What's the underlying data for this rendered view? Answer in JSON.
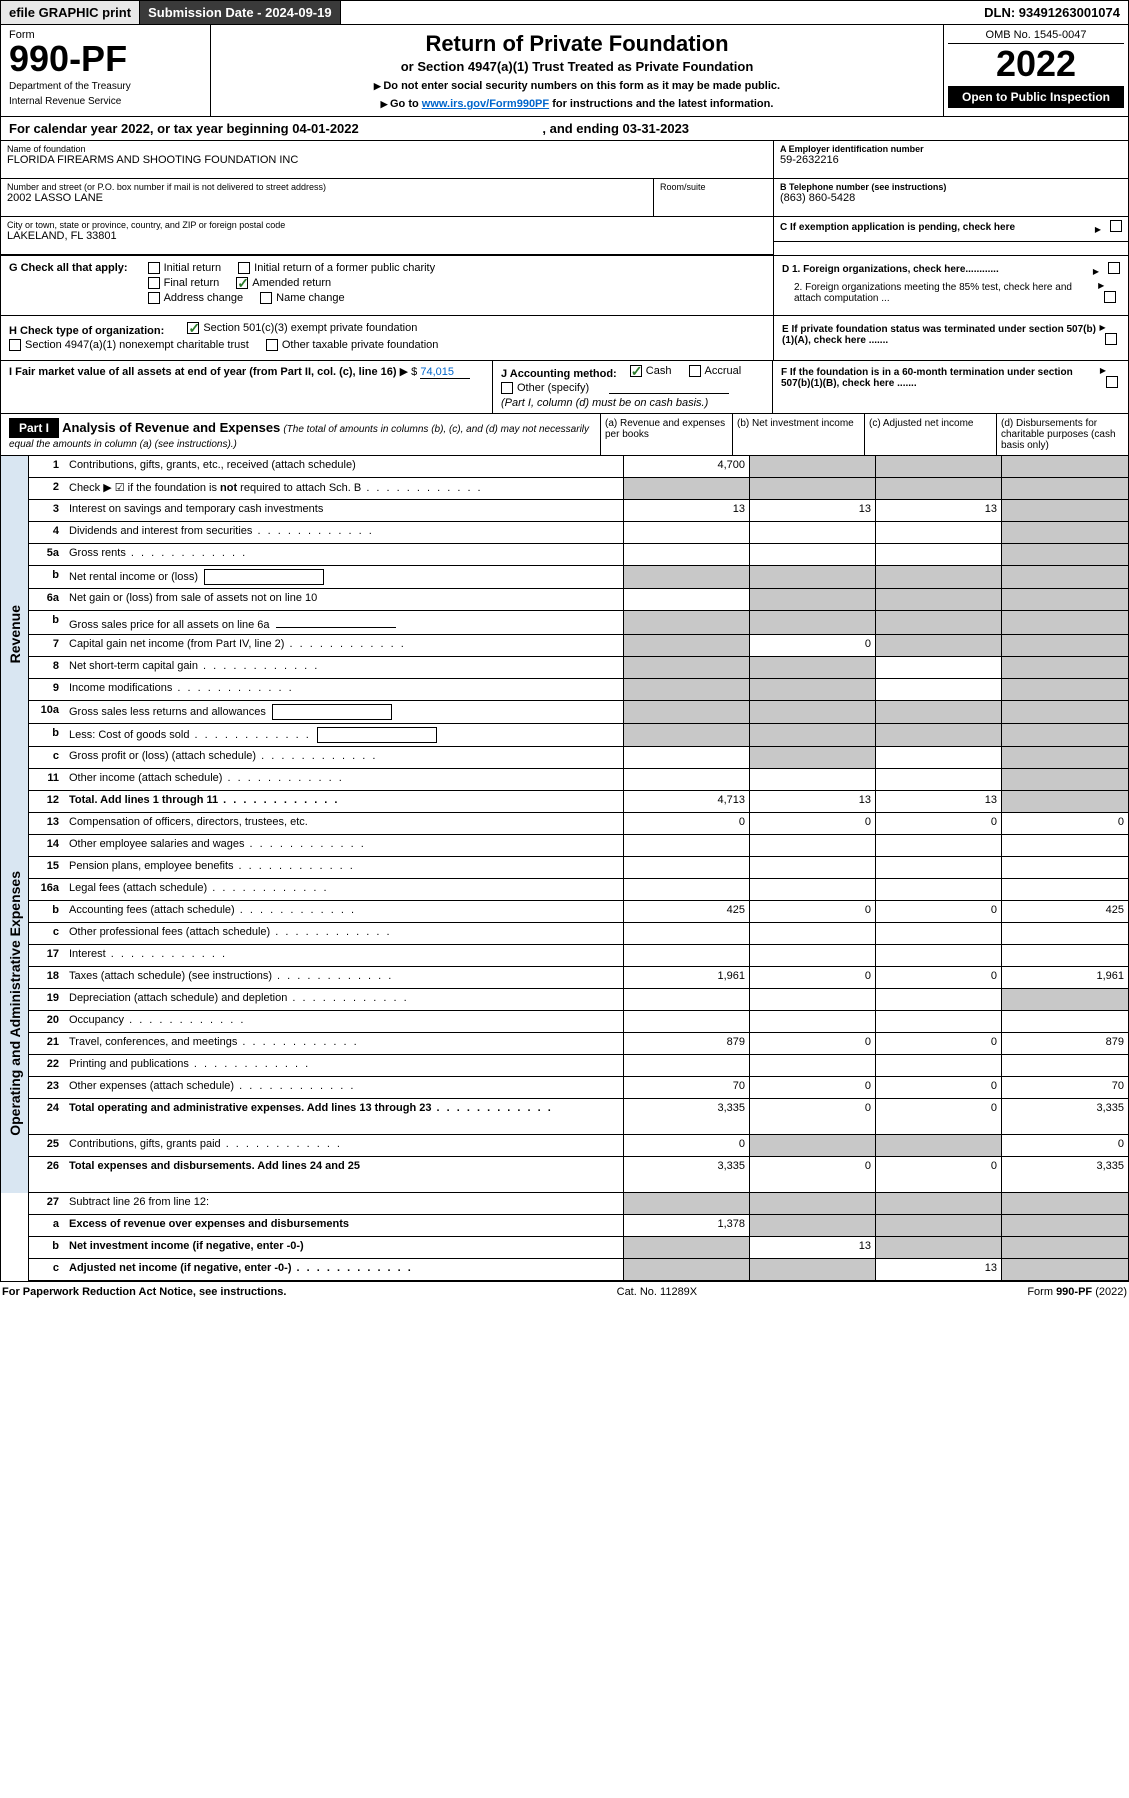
{
  "topbar": {
    "efile": "efile GRAPHIC print",
    "submission_label": "Submission Date - 2024-09-19",
    "dln_label": "DLN: 93491263001074"
  },
  "header": {
    "form_label": "Form",
    "form_number": "990-PF",
    "dept1": "Department of the Treasury",
    "dept2": "Internal Revenue Service",
    "title": "Return of Private Foundation",
    "subtitle": "or Section 4947(a)(1) Trust Treated as Private Foundation",
    "instr1": "Do not enter social security numbers on this form as it may be made public.",
    "instr2_pre": "Go to ",
    "instr2_link": "www.irs.gov/Form990PF",
    "instr2_post": " for instructions and the latest information.",
    "omb": "OMB No. 1545-0047",
    "year": "2022",
    "open": "Open to Public Inspection"
  },
  "calyear": {
    "text_pre": "For calendar year 2022, or tax year beginning ",
    "begin": "04-01-2022",
    "text_mid": " , and ending ",
    "end": "03-31-2023"
  },
  "identity": {
    "name_lbl": "Name of foundation",
    "name": "FLORIDA FIREARMS AND SHOOTING FOUNDATION INC",
    "addr_lbl": "Number and street (or P.O. box number if mail is not delivered to street address)",
    "addr": "2002 LASSO LANE",
    "room_lbl": "Room/suite",
    "room": "",
    "city_lbl": "City or town, state or province, country, and ZIP or foreign postal code",
    "city": "LAKELAND, FL  33801",
    "ein_lbl": "A Employer identification number",
    "ein": "59-2632216",
    "tel_lbl": "B Telephone number (see instructions)",
    "tel": "(863) 860-5428",
    "c_lbl": "C If exemption application is pending, check here",
    "d1": "D 1. Foreign organizations, check here............",
    "d2": "2. Foreign organizations meeting the 85% test, check here and attach computation ...",
    "e": "E  If private foundation status was terminated under section 507(b)(1)(A), check here .......",
    "f": "F  If the foundation is in a 60-month termination under section 507(b)(1)(B), check here ......."
  },
  "g": {
    "label": "G Check all that apply:",
    "initial": "Initial return",
    "final": "Final return",
    "address": "Address change",
    "initial_former": "Initial return of a former public charity",
    "amended": "Amended return",
    "name": "Name change",
    "amended_checked": true
  },
  "h": {
    "label": "H Check type of organization:",
    "opt1": "Section 501(c)(3) exempt private foundation",
    "opt1_checked": true,
    "opt2": "Section 4947(a)(1) nonexempt charitable trust",
    "opt3": "Other taxable private foundation"
  },
  "i": {
    "label": "I Fair market value of all assets at end of year (from Part II, col. (c), line 16)",
    "arrow": "▶ $",
    "value": "74,015"
  },
  "j": {
    "label": "J Accounting method:",
    "cash": "Cash",
    "cash_checked": true,
    "accrual": "Accrual",
    "other": "Other (specify)",
    "note": "(Part I, column (d) must be on cash basis.)"
  },
  "part1": {
    "tag": "Part I",
    "title": "Analysis of Revenue and Expenses",
    "title_note": " (The total of amounts in columns (b), (c), and (d) may not necessarily equal the amounts in column (a) (see instructions).)",
    "col_a": "(a)   Revenue and expenses per books",
    "col_b": "(b)   Net investment income",
    "col_c": "(c)   Adjusted net income",
    "col_d": "(d)  Disbursements for charitable purposes (cash basis only)"
  },
  "sections": {
    "revenue": "Revenue",
    "expenses": "Operating and Administrative Expenses"
  },
  "rows": [
    {
      "n": "1",
      "d": "Contributions, gifts, grants, etc., received (attach schedule)",
      "a": "4,700",
      "b": "",
      "c": "",
      "dcol": "",
      "bgrey": true,
      "cgrey": true,
      "dgrey": true
    },
    {
      "n": "2",
      "d": "Check ▶ ☑ if the foundation is not required to attach Sch. B",
      "nocells": true,
      "dots": true,
      "bold_not": true
    },
    {
      "n": "3",
      "d": "Interest on savings and temporary cash investments",
      "a": "13",
      "b": "13",
      "c": "13",
      "dcol": "",
      "dgrey": true
    },
    {
      "n": "4",
      "d": "Dividends and interest from securities",
      "dots": true,
      "a": "",
      "b": "",
      "c": "",
      "dcol": "",
      "dgrey": true
    },
    {
      "n": "5a",
      "d": "Gross rents",
      "dots": true,
      "a": "",
      "b": "",
      "c": "",
      "dcol": "",
      "dgrey": true
    },
    {
      "n": "b",
      "d": "Net rental income or (loss)",
      "inlinebox": true,
      "allgrey": true
    },
    {
      "n": "6a",
      "d": "Net gain or (loss) from sale of assets not on line 10",
      "a": "",
      "b": "",
      "c": "",
      "dcol": "",
      "bgrey": true,
      "cgrey": true,
      "dgrey": true
    },
    {
      "n": "b",
      "d": "Gross sales price for all assets on line 6a",
      "inlineunder": true,
      "allgrey": true
    },
    {
      "n": "7",
      "d": "Capital gain net income (from Part IV, line 2)",
      "dots": true,
      "a": "",
      "b": "0",
      "c": "",
      "dcol": "",
      "agrey": true,
      "cgrey": true,
      "dgrey": true
    },
    {
      "n": "8",
      "d": "Net short-term capital gain",
      "dots": true,
      "a": "",
      "b": "",
      "c": "",
      "dcol": "",
      "agrey": true,
      "bgrey": true,
      "dgrey": true
    },
    {
      "n": "9",
      "d": "Income modifications",
      "dots": true,
      "a": "",
      "b": "",
      "c": "",
      "dcol": "",
      "agrey": true,
      "bgrey": true,
      "dgrey": true
    },
    {
      "n": "10a",
      "d": "Gross sales less returns and allowances",
      "inlinebox": true,
      "allgrey": true
    },
    {
      "n": "b",
      "d": "Less: Cost of goods sold",
      "dots": true,
      "inlinebox": true,
      "allgrey": true
    },
    {
      "n": "c",
      "d": "Gross profit or (loss) (attach schedule)",
      "dots": true,
      "a": "",
      "b": "",
      "c": "",
      "dcol": "",
      "bgrey": true,
      "dgrey": true
    },
    {
      "n": "11",
      "d": "Other income (attach schedule)",
      "dots": true,
      "a": "",
      "b": "",
      "c": "",
      "dcol": "",
      "dgrey": true
    },
    {
      "n": "12",
      "d": "Total. Add lines 1 through 11",
      "dots": true,
      "bold": true,
      "a": "4,713",
      "b": "13",
      "c": "13",
      "dcol": "",
      "dgrey": true
    }
  ],
  "exp_rows": [
    {
      "n": "13",
      "d": "Compensation of officers, directors, trustees, etc.",
      "a": "0",
      "b": "0",
      "c": "0",
      "dcol": "0"
    },
    {
      "n": "14",
      "d": "Other employee salaries and wages",
      "dots": true
    },
    {
      "n": "15",
      "d": "Pension plans, employee benefits",
      "dots": true
    },
    {
      "n": "16a",
      "d": "Legal fees (attach schedule)",
      "dots": true
    },
    {
      "n": "b",
      "d": "Accounting fees (attach schedule)",
      "dots": true,
      "a": "425",
      "b": "0",
      "c": "0",
      "dcol": "425"
    },
    {
      "n": "c",
      "d": "Other professional fees (attach schedule)",
      "dots": true
    },
    {
      "n": "17",
      "d": "Interest",
      "dots": true
    },
    {
      "n": "18",
      "d": "Taxes (attach schedule) (see instructions)",
      "dots": true,
      "a": "1,961",
      "b": "0",
      "c": "0",
      "dcol": "1,961"
    },
    {
      "n": "19",
      "d": "Depreciation (attach schedule) and depletion",
      "dots": true,
      "dgrey": true
    },
    {
      "n": "20",
      "d": "Occupancy",
      "dots": true
    },
    {
      "n": "21",
      "d": "Travel, conferences, and meetings",
      "dots": true,
      "a": "879",
      "b": "0",
      "c": "0",
      "dcol": "879"
    },
    {
      "n": "22",
      "d": "Printing and publications",
      "dots": true
    },
    {
      "n": "23",
      "d": "Other expenses (attach schedule)",
      "dots": true,
      "a": "70",
      "b": "0",
      "c": "0",
      "dcol": "70"
    },
    {
      "n": "24",
      "d": "Total operating and administrative expenses. Add lines 13 through 23",
      "dots": true,
      "bold": true,
      "a": "3,335",
      "b": "0",
      "c": "0",
      "dcol": "3,335",
      "tall": true
    },
    {
      "n": "25",
      "d": "Contributions, gifts, grants paid",
      "dots": true,
      "a": "0",
      "dcol": "0",
      "bgrey": true,
      "cgrey": true
    },
    {
      "n": "26",
      "d": "Total expenses and disbursements. Add lines 24 and 25",
      "bold": true,
      "a": "3,335",
      "b": "0",
      "c": "0",
      "dcol": "3,335",
      "tall": true
    }
  ],
  "bottom_rows": [
    {
      "n": "27",
      "d": "Subtract line 26 from line 12:",
      "allgrey": true
    },
    {
      "n": "a",
      "d": "Excess of revenue over expenses and disbursements",
      "bold": true,
      "a": "1,378",
      "bgrey": true,
      "cgrey": true,
      "dgrey": true
    },
    {
      "n": "b",
      "d": "Net investment income (if negative, enter -0-)",
      "bold": true,
      "b": "13",
      "agrey": true,
      "cgrey": true,
      "dgrey": true
    },
    {
      "n": "c",
      "d": "Adjusted net income (if negative, enter -0-)",
      "dots": true,
      "bold": true,
      "c": "13",
      "agrey": true,
      "bgrey": true,
      "dgrey": true
    }
  ],
  "footer": {
    "left": "For Paperwork Reduction Act Notice, see instructions.",
    "mid": "Cat. No. 11289X",
    "right": "Form 990-PF (2022)"
  },
  "colors": {
    "link": "#0066cc",
    "check": "#2a7a2a",
    "grey_cell": "#c8c8c8",
    "side_bg": "#d9e6f2"
  }
}
